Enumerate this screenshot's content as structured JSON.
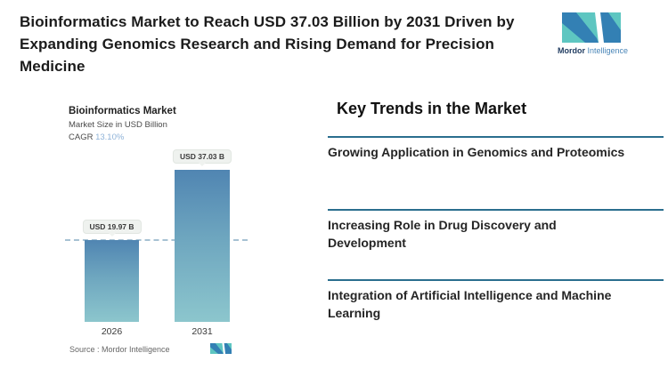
{
  "header": {
    "headline": "Bioinformatics Market to Reach USD 37.03 Billion by 2031 Driven by\nExpanding Genomics Research and Rising Demand for Precision\nMedicine"
  },
  "brand": {
    "name_primary": "Mordor",
    "name_secondary": " Intelligence"
  },
  "chart": {
    "title": "Bioinformatics Market",
    "subtitle": "Market Size in USD Billion",
    "cagr_label": "CAGR ",
    "cagr_value": "13.10%",
    "source": "Source :  Mordor Intelligence"
  },
  "chart_data": {
    "type": "bar",
    "title": "Bioinformatics Market",
    "ylabel": "Market Size in USD Billion",
    "categories": [
      "2026",
      "2031"
    ],
    "values": [
      19.97,
      37.03
    ],
    "bar_labels": [
      "USD 19.97 B",
      "USD 37.03 B"
    ],
    "cagr": "13.10%",
    "ylim": [
      0,
      40
    ],
    "legend": false,
    "grid": false,
    "annotations": [
      "horizontal dashed reference line at 2026 value (19.97)"
    ]
  },
  "trends": {
    "heading": "Key Trends in the Market",
    "items": [
      {
        "text": "Growing Application in Genomics and Proteomics"
      },
      {
        "text": "Increasing Role in Drug Discovery and\nDevelopment"
      },
      {
        "text": "Integration of Artificial Intelligence and Machine\nLearning"
      }
    ]
  },
  "colors": {
    "accent_teal": "#5ec6c1",
    "accent_blue": "#3380b4",
    "divider": "#2a6e8e",
    "bar_gradient_top": "#5085b2",
    "bar_gradient_bottom": "#8cc6cd",
    "cagr_value": "#8fb3d8",
    "dashed_line": "#a7c2d3"
  }
}
